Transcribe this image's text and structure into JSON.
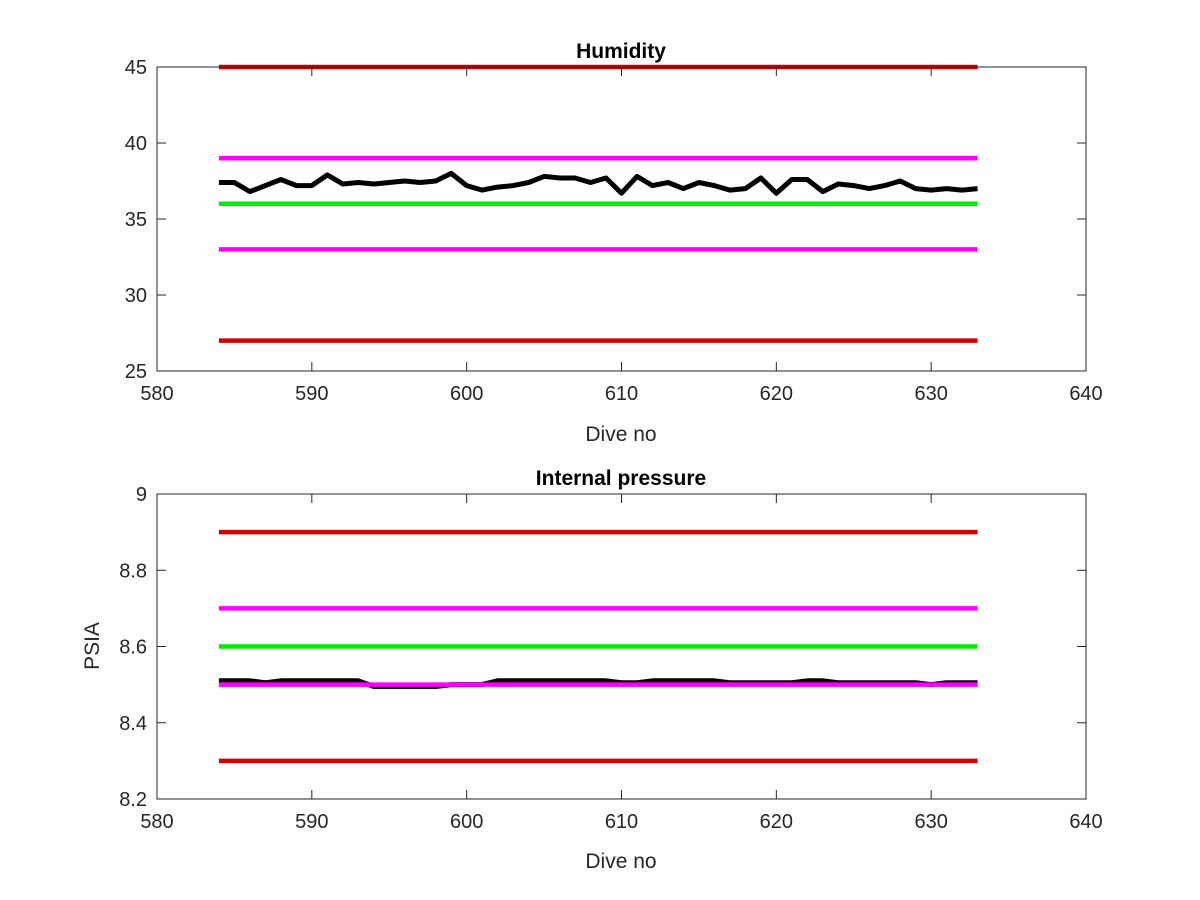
{
  "chart_data": [
    {
      "type": "line",
      "title": "Humidity",
      "xlabel": "Dive no",
      "ylabel": "",
      "xlim": [
        580,
        640
      ],
      "ylim": [
        25,
        45
      ],
      "xticks": [
        "580",
        "590",
        "600",
        "610",
        "620",
        "630",
        "640"
      ],
      "yticks": [
        "25",
        "30",
        "35",
        "40",
        "45"
      ],
      "grid": false,
      "series": [
        {
          "color": "#d40000",
          "kind": "threshold",
          "x": [
            584,
            633
          ],
          "values": [
            45,
            45
          ]
        },
        {
          "color": "#ff00ff",
          "kind": "threshold",
          "x": [
            584,
            633
          ],
          "values": [
            39,
            39
          ]
        },
        {
          "color": "#00ee00",
          "kind": "threshold",
          "x": [
            584,
            633
          ],
          "values": [
            36,
            36
          ]
        },
        {
          "color": "#ff00ff",
          "kind": "threshold",
          "x": [
            584,
            633
          ],
          "values": [
            33,
            33
          ]
        },
        {
          "color": "#d40000",
          "kind": "threshold",
          "x": [
            584,
            633
          ],
          "values": [
            27,
            27
          ]
        },
        {
          "color": "#000000",
          "kind": "data",
          "x": [
            584,
            585,
            586,
            587,
            588,
            589,
            590,
            591,
            592,
            593,
            594,
            595,
            596,
            597,
            598,
            599,
            600,
            601,
            602,
            603,
            604,
            605,
            606,
            607,
            608,
            609,
            610,
            611,
            612,
            613,
            614,
            615,
            616,
            617,
            618,
            619,
            620,
            621,
            622,
            623,
            624,
            625,
            626,
            627,
            628,
            629,
            630,
            631,
            632,
            633
          ],
          "values": [
            37.4,
            37.4,
            36.8,
            37.2,
            37.6,
            37.2,
            37.2,
            37.9,
            37.3,
            37.4,
            37.3,
            37.4,
            37.5,
            37.4,
            37.5,
            38.0,
            37.2,
            36.9,
            37.1,
            37.2,
            37.4,
            37.8,
            37.7,
            37.7,
            37.4,
            37.7,
            36.7,
            37.8,
            37.2,
            37.4,
            37.0,
            37.4,
            37.2,
            36.9,
            37.0,
            37.7,
            36.7,
            37.6,
            37.6,
            36.8,
            37.3,
            37.2,
            37.0,
            37.2,
            37.5,
            37.0,
            36.9,
            37.0,
            36.9,
            37.0
          ]
        }
      ]
    },
    {
      "type": "line",
      "title": "Internal pressure",
      "xlabel": "Dive no",
      "ylabel": "PSIA",
      "xlim": [
        580,
        640
      ],
      "ylim": [
        8.2,
        9
      ],
      "xticks": [
        "580",
        "590",
        "600",
        "610",
        "620",
        "630",
        "640"
      ],
      "yticks": [
        "8.2",
        "8.4",
        "8.6",
        "8.8",
        "9"
      ],
      "grid": false,
      "series": [
        {
          "color": "#d40000",
          "kind": "threshold",
          "x": [
            584,
            633
          ],
          "values": [
            8.9,
            8.9
          ]
        },
        {
          "color": "#ff00ff",
          "kind": "threshold",
          "x": [
            584,
            633
          ],
          "values": [
            8.7,
            8.7
          ]
        },
        {
          "color": "#00ee00",
          "kind": "threshold",
          "x": [
            584,
            633
          ],
          "values": [
            8.6,
            8.6
          ]
        },
        {
          "color": "#000000",
          "kind": "data",
          "x": [
            584,
            585,
            586,
            587,
            588,
            589,
            590,
            591,
            592,
            593,
            594,
            595,
            596,
            597,
            598,
            599,
            600,
            601,
            602,
            603,
            604,
            605,
            606,
            607,
            608,
            609,
            610,
            611,
            612,
            613,
            614,
            615,
            616,
            617,
            618,
            619,
            620,
            621,
            622,
            623,
            624,
            625,
            626,
            627,
            628,
            629,
            630,
            631,
            632,
            633
          ],
          "values": [
            8.51,
            8.51,
            8.51,
            8.505,
            8.51,
            8.51,
            8.51,
            8.51,
            8.51,
            8.51,
            8.495,
            8.495,
            8.495,
            8.495,
            8.495,
            8.5,
            8.5,
            8.5,
            8.51,
            8.51,
            8.51,
            8.51,
            8.51,
            8.51,
            8.51,
            8.51,
            8.505,
            8.505,
            8.51,
            8.51,
            8.51,
            8.51,
            8.51,
            8.505,
            8.505,
            8.505,
            8.505,
            8.505,
            8.51,
            8.51,
            8.505,
            8.505,
            8.505,
            8.505,
            8.505,
            8.505,
            8.5,
            8.505,
            8.505,
            8.505
          ]
        },
        {
          "color": "#ff00ff",
          "kind": "threshold",
          "x": [
            584,
            633
          ],
          "values": [
            8.5,
            8.5
          ]
        },
        {
          "color": "#d40000",
          "kind": "threshold",
          "x": [
            584,
            633
          ],
          "values": [
            8.3,
            8.3
          ]
        }
      ]
    }
  ]
}
